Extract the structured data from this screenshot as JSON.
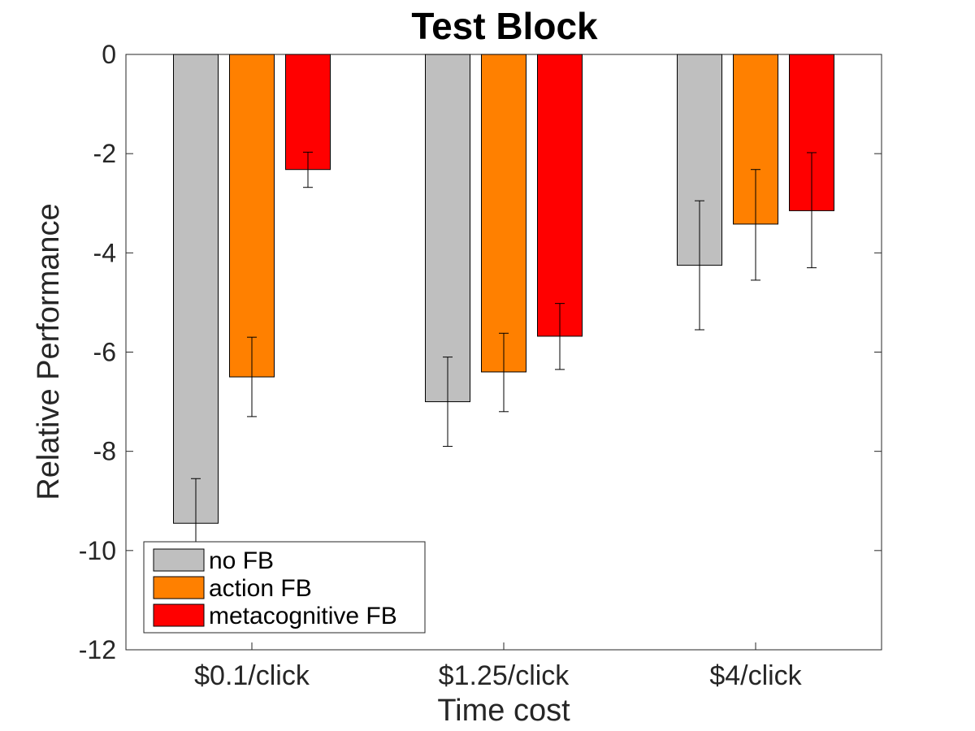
{
  "chart_data": {
    "type": "bar",
    "title": "Test Block",
    "xlabel": "Time cost",
    "ylabel": "Relative Performance",
    "categories": [
      "$0.1/click",
      "$1.25/click",
      "$4/click"
    ],
    "ylim": [
      -12,
      0
    ],
    "yticks": [
      0,
      -2,
      -4,
      -6,
      -8,
      -10,
      -12
    ],
    "grid": false,
    "legend_position": "bottom-left",
    "series": [
      {
        "name": "no FB",
        "color": "#bfbfbf",
        "values": [
          -9.45,
          -7.0,
          -4.25
        ],
        "err_low": [
          -10.3,
          -7.9,
          -5.55
        ],
        "err_high": [
          -8.55,
          -6.1,
          -2.95
        ]
      },
      {
        "name": "action FB",
        "color": "#ff8000",
        "values": [
          -6.5,
          -6.4,
          -3.42
        ],
        "err_low": [
          -7.3,
          -7.2,
          -4.55
        ],
        "err_high": [
          -5.7,
          -5.62,
          -2.32
        ]
      },
      {
        "name": "metacognitive FB",
        "color": "#ff0000",
        "values": [
          -2.32,
          -5.68,
          -3.15
        ],
        "err_low": [
          -2.68,
          -6.35,
          -4.3
        ],
        "err_high": [
          -1.97,
          -5.02,
          -1.98
        ]
      }
    ]
  }
}
